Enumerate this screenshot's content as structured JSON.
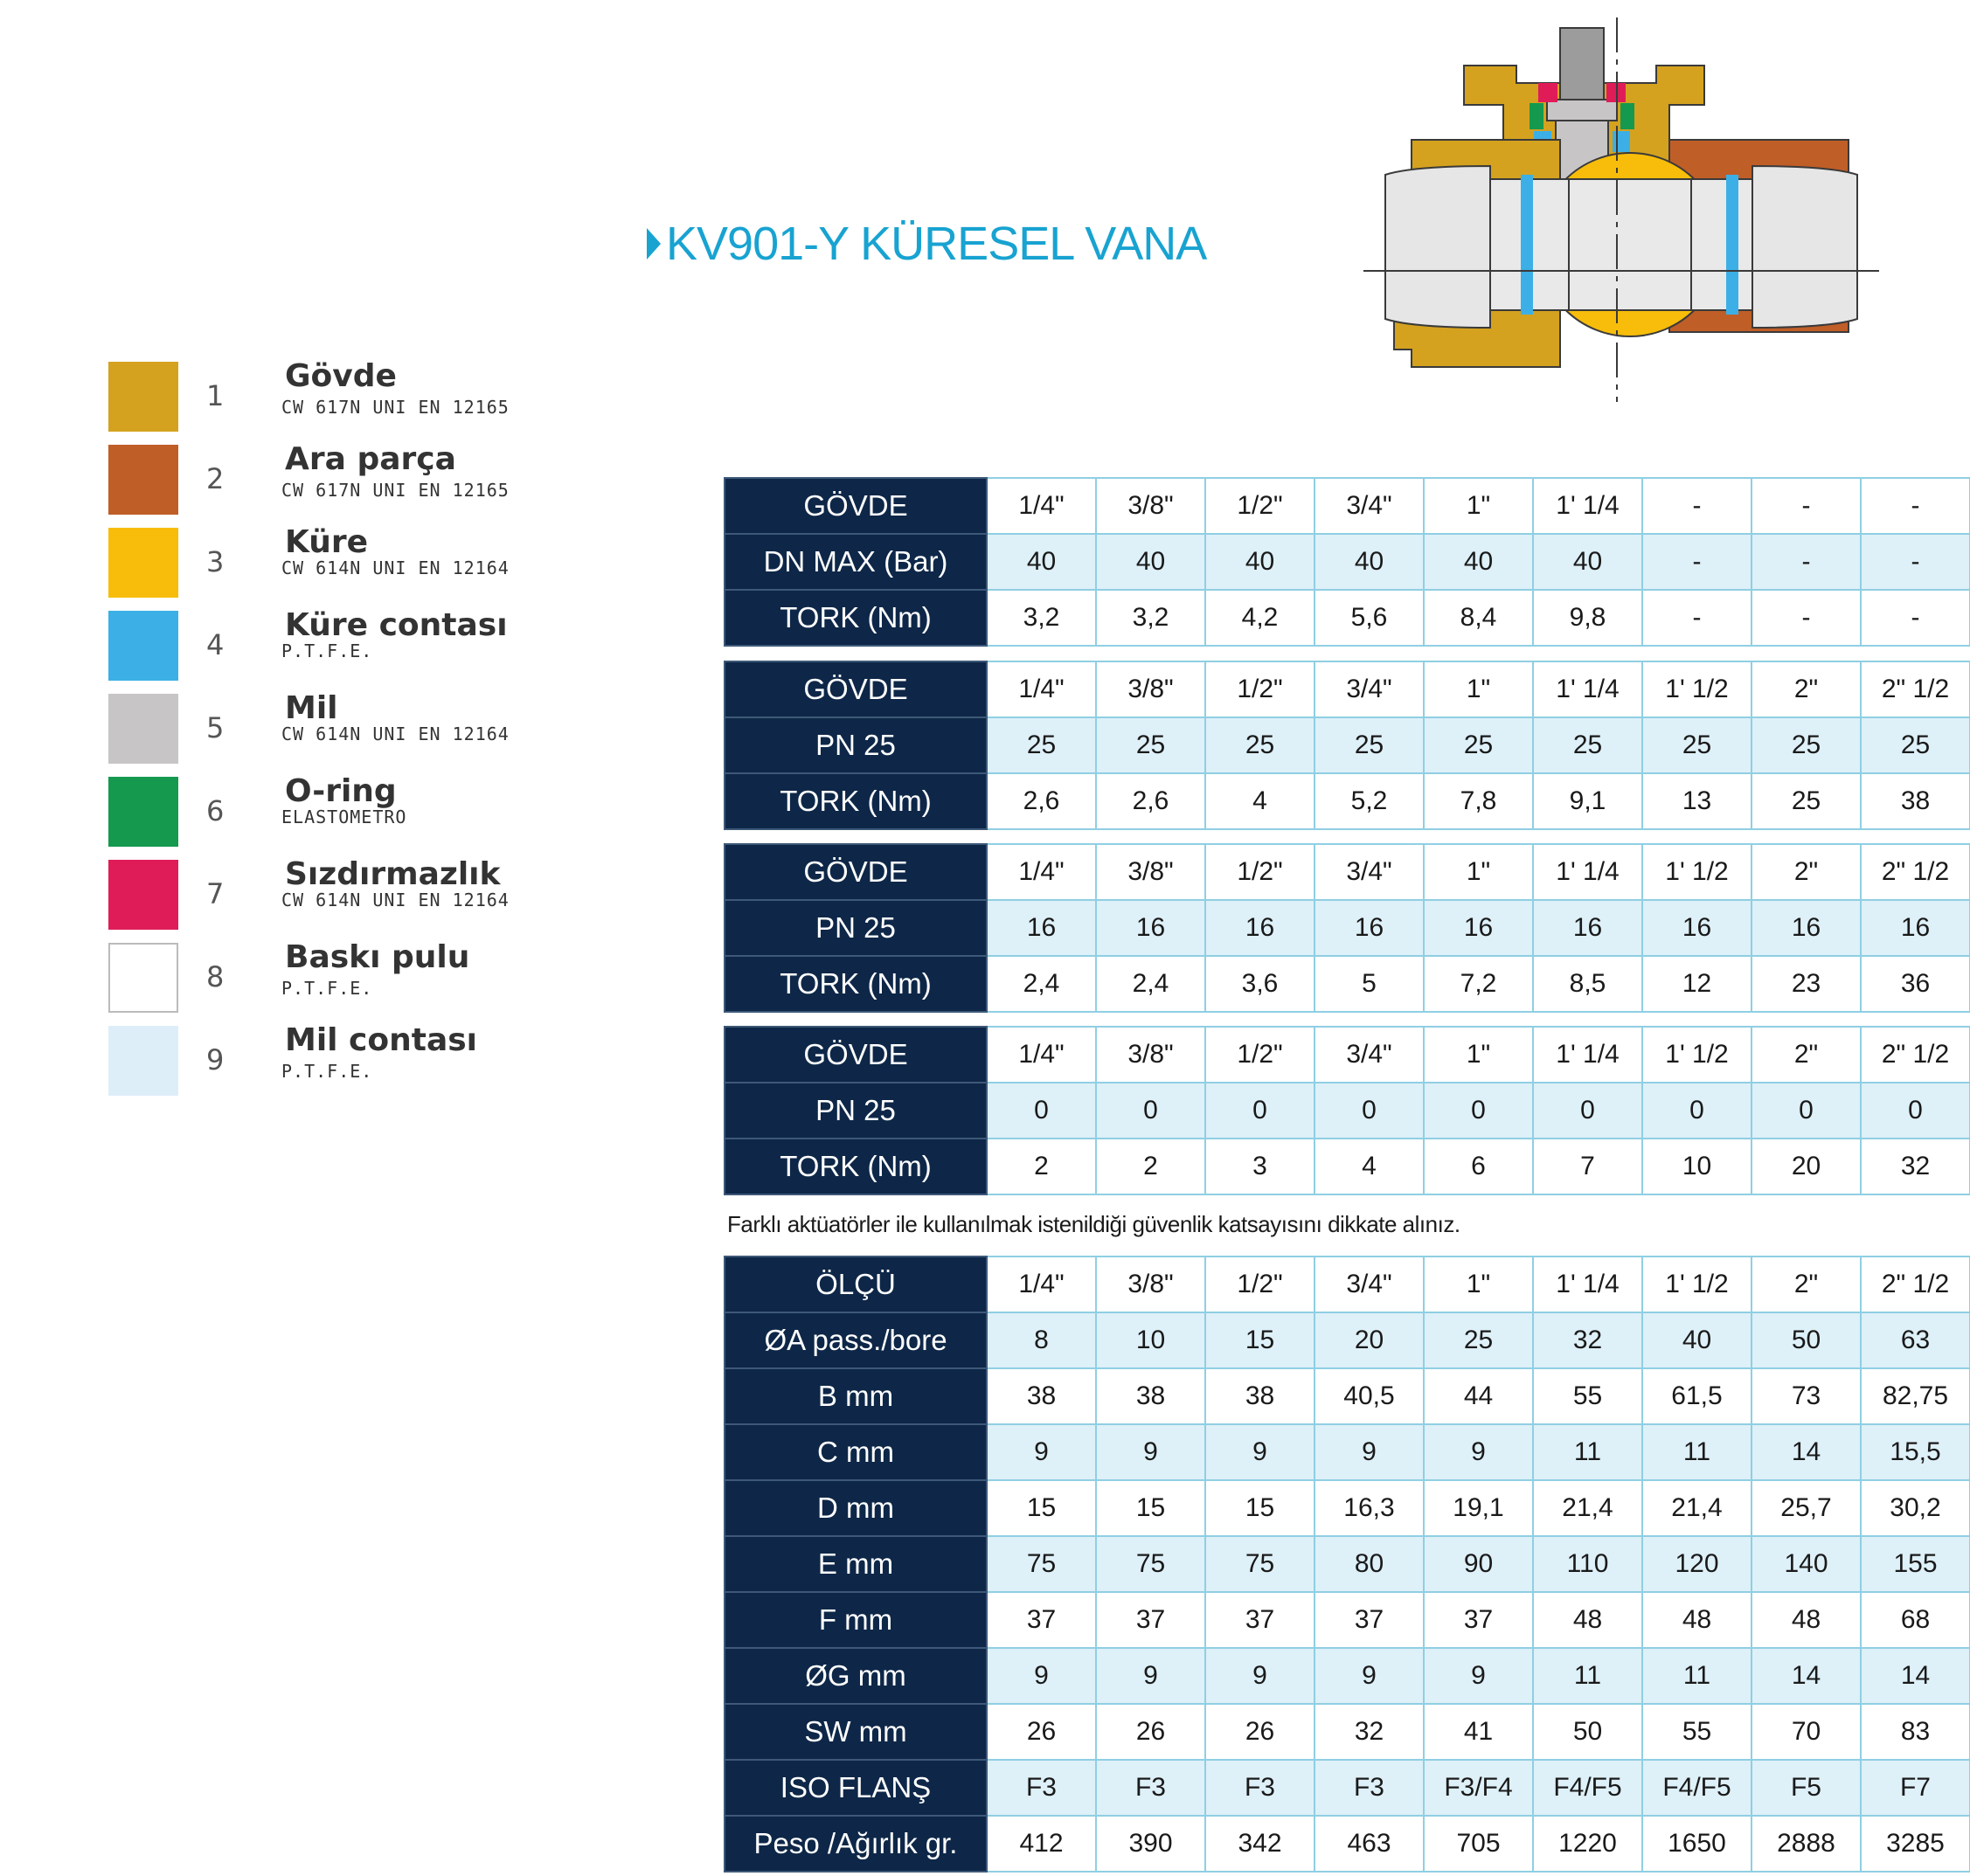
{
  "title": "KV901-Y KÜRESEL VANA",
  "legend": [
    {
      "num": "1",
      "name": "Gövde",
      "sub": "CW 617N UNI EN 12165",
      "color": "#d4a21f"
    },
    {
      "num": "2",
      "name": "Ara parça",
      "sub": "CW 617N UNI EN 12165",
      "color": "#c05e27"
    },
    {
      "num": "3",
      "name": "Küre",
      "sub": "CW 614N UNI EN 12164",
      "color": "#f7bd0a"
    },
    {
      "num": "4",
      "name": "Küre contası",
      "sub": "P.T.F.E.",
      "color": "#3cb0e6"
    },
    {
      "num": "5",
      "name": "Mil",
      "sub": "CW 614N UNI EN 12164",
      "color": "#c7c5c5"
    },
    {
      "num": "6",
      "name": "O-ring",
      "sub": "ELASTOMETRO",
      "color": "#14994f"
    },
    {
      "num": "7",
      "name": "Sızdırmazlık",
      "sub": "CW 614N UNI EN 12164",
      "color": "#e01c58"
    },
    {
      "num": "8",
      "name": "Baskı pulu",
      "sub": "P.T.F.E.",
      "color": "#ffffff"
    },
    {
      "num": "9",
      "name": "Mil contası",
      "sub": "P.T.F.E.",
      "color": "#ddeef9"
    }
  ],
  "tables": [
    {
      "rows": [
        {
          "label": "GÖVDE",
          "values": [
            "1/4\"",
            "3/8\"",
            "1/2\"",
            "3/4\"",
            "1\"",
            "1' 1/4",
            "-",
            "-",
            "-"
          ]
        },
        {
          "label": "DN MAX (Bar)",
          "values": [
            "40",
            "40",
            "40",
            "40",
            "40",
            "40",
            "-",
            "-",
            "-"
          ]
        },
        {
          "label": "TORK (Nm)",
          "values": [
            "3,2",
            "3,2",
            "4,2",
            "5,6",
            "8,4",
            "9,8",
            "-",
            "-",
            "-"
          ]
        }
      ]
    },
    {
      "rows": [
        {
          "label": "GÖVDE",
          "values": [
            "1/4\"",
            "3/8\"",
            "1/2\"",
            "3/4\"",
            "1\"",
            "1' 1/4",
            "1' 1/2",
            "2\"",
            "2\" 1/2"
          ]
        },
        {
          "label": "PN 25",
          "values": [
            "25",
            "25",
            "25",
            "25",
            "25",
            "25",
            "25",
            "25",
            "25"
          ]
        },
        {
          "label": "TORK (Nm)",
          "values": [
            "2,6",
            "2,6",
            "4",
            "5,2",
            "7,8",
            "9,1",
            "13",
            "25",
            "38"
          ]
        }
      ]
    },
    {
      "rows": [
        {
          "label": "GÖVDE",
          "values": [
            "1/4\"",
            "3/8\"",
            "1/2\"",
            "3/4\"",
            "1\"",
            "1' 1/4",
            "1' 1/2",
            "2\"",
            "2\" 1/2"
          ]
        },
        {
          "label": "PN 25",
          "values": [
            "16",
            "16",
            "16",
            "16",
            "16",
            "16",
            "16",
            "16",
            "16"
          ]
        },
        {
          "label": "TORK (Nm)",
          "values": [
            "2,4",
            "2,4",
            "3,6",
            "5",
            "7,2",
            "8,5",
            "12",
            "23",
            "36"
          ]
        }
      ]
    },
    {
      "rows": [
        {
          "label": "GÖVDE",
          "values": [
            "1/4\"",
            "3/8\"",
            "1/2\"",
            "3/4\"",
            "1\"",
            "1' 1/4",
            "1' 1/2",
            "2\"",
            "2\" 1/2"
          ]
        },
        {
          "label": "PN 25",
          "values": [
            "0",
            "0",
            "0",
            "0",
            "0",
            "0",
            "0",
            "0",
            "0"
          ]
        },
        {
          "label": "TORK (Nm)",
          "values": [
            "2",
            "2",
            "3",
            "4",
            "6",
            "7",
            "10",
            "20",
            "32"
          ]
        }
      ]
    }
  ],
  "note": "Farklı aktüatörler ile kullanılmak istenildiği güvenlik katsayısını dikkate alınız.",
  "dimensions": {
    "rows": [
      {
        "label": "ÖLÇÜ",
        "values": [
          "1/4\"",
          "3/8\"",
          "1/2\"",
          "3/4\"",
          "1\"",
          "1' 1/4",
          "1' 1/2",
          "2\"",
          "2\" 1/2"
        ]
      },
      {
        "label": "ØA pass./bore",
        "values": [
          "8",
          "10",
          "15",
          "20",
          "25",
          "32",
          "40",
          "50",
          "63"
        ]
      },
      {
        "label": "B mm",
        "values": [
          "38",
          "38",
          "38",
          "40,5",
          "44",
          "55",
          "61,5",
          "73",
          "82,75"
        ]
      },
      {
        "label": "C mm",
        "values": [
          "9",
          "9",
          "9",
          "9",
          "9",
          "11",
          "11",
          "14",
          "15,5"
        ]
      },
      {
        "label": "D mm",
        "values": [
          "15",
          "15",
          "15",
          "16,3",
          "19,1",
          "21,4",
          "21,4",
          "25,7",
          "30,2"
        ]
      },
      {
        "label": "E mm",
        "values": [
          "75",
          "75",
          "75",
          "80",
          "90",
          "110",
          "120",
          "140",
          "155"
        ]
      },
      {
        "label": "F mm",
        "values": [
          "37",
          "37",
          "37",
          "37",
          "37",
          "48",
          "48",
          "48",
          "68"
        ]
      },
      {
        "label": "ØG mm",
        "values": [
          "9",
          "9",
          "9",
          "9",
          "9",
          "11",
          "11",
          "14",
          "14"
        ]
      },
      {
        "label": "SW mm",
        "values": [
          "26",
          "26",
          "26",
          "32",
          "41",
          "50",
          "55",
          "70",
          "83"
        ]
      },
      {
        "label": "ISO FLANŞ",
        "values": [
          "F3",
          "F3",
          "F3",
          "F3",
          "F3/F4",
          "F4/F5",
          "F4/F5",
          "F5",
          "F7"
        ]
      },
      {
        "label": "Peso /Ağırlık gr.",
        "values": [
          "412",
          "390",
          "342",
          "463",
          "705",
          "1220",
          "1650",
          "2888",
          "3285"
        ]
      }
    ]
  }
}
